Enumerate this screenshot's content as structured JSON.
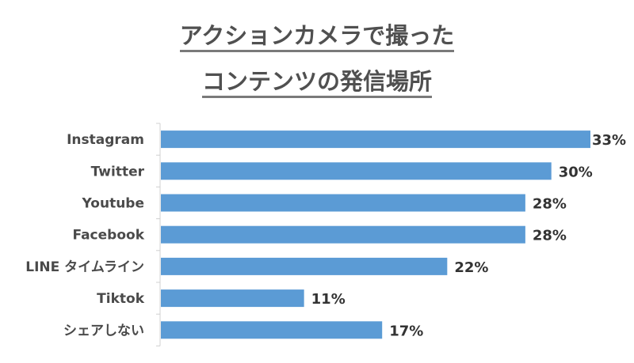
{
  "chart_data": {
    "type": "bar",
    "orientation": "horizontal",
    "title_lines": [
      "アクションカメラで撮った",
      "コンテンツの発信場所"
    ],
    "categories": [
      "Instagram",
      "Twitter",
      "Youtube",
      "Facebook",
      "LINE タイムライン",
      "Tiktok",
      "シェアしない"
    ],
    "values": [
      33,
      30,
      28,
      28,
      22,
      11,
      17
    ],
    "value_labels": [
      "33%",
      "30%",
      "28%",
      "28%",
      "22%",
      "11%",
      "17%"
    ],
    "unit": "%",
    "xlim": [
      0,
      33
    ],
    "grid": false,
    "legend": "none",
    "colors": {
      "bar": "#5B9BD5",
      "text": "#4A4A4A",
      "axis": "#D0D0D0"
    }
  }
}
